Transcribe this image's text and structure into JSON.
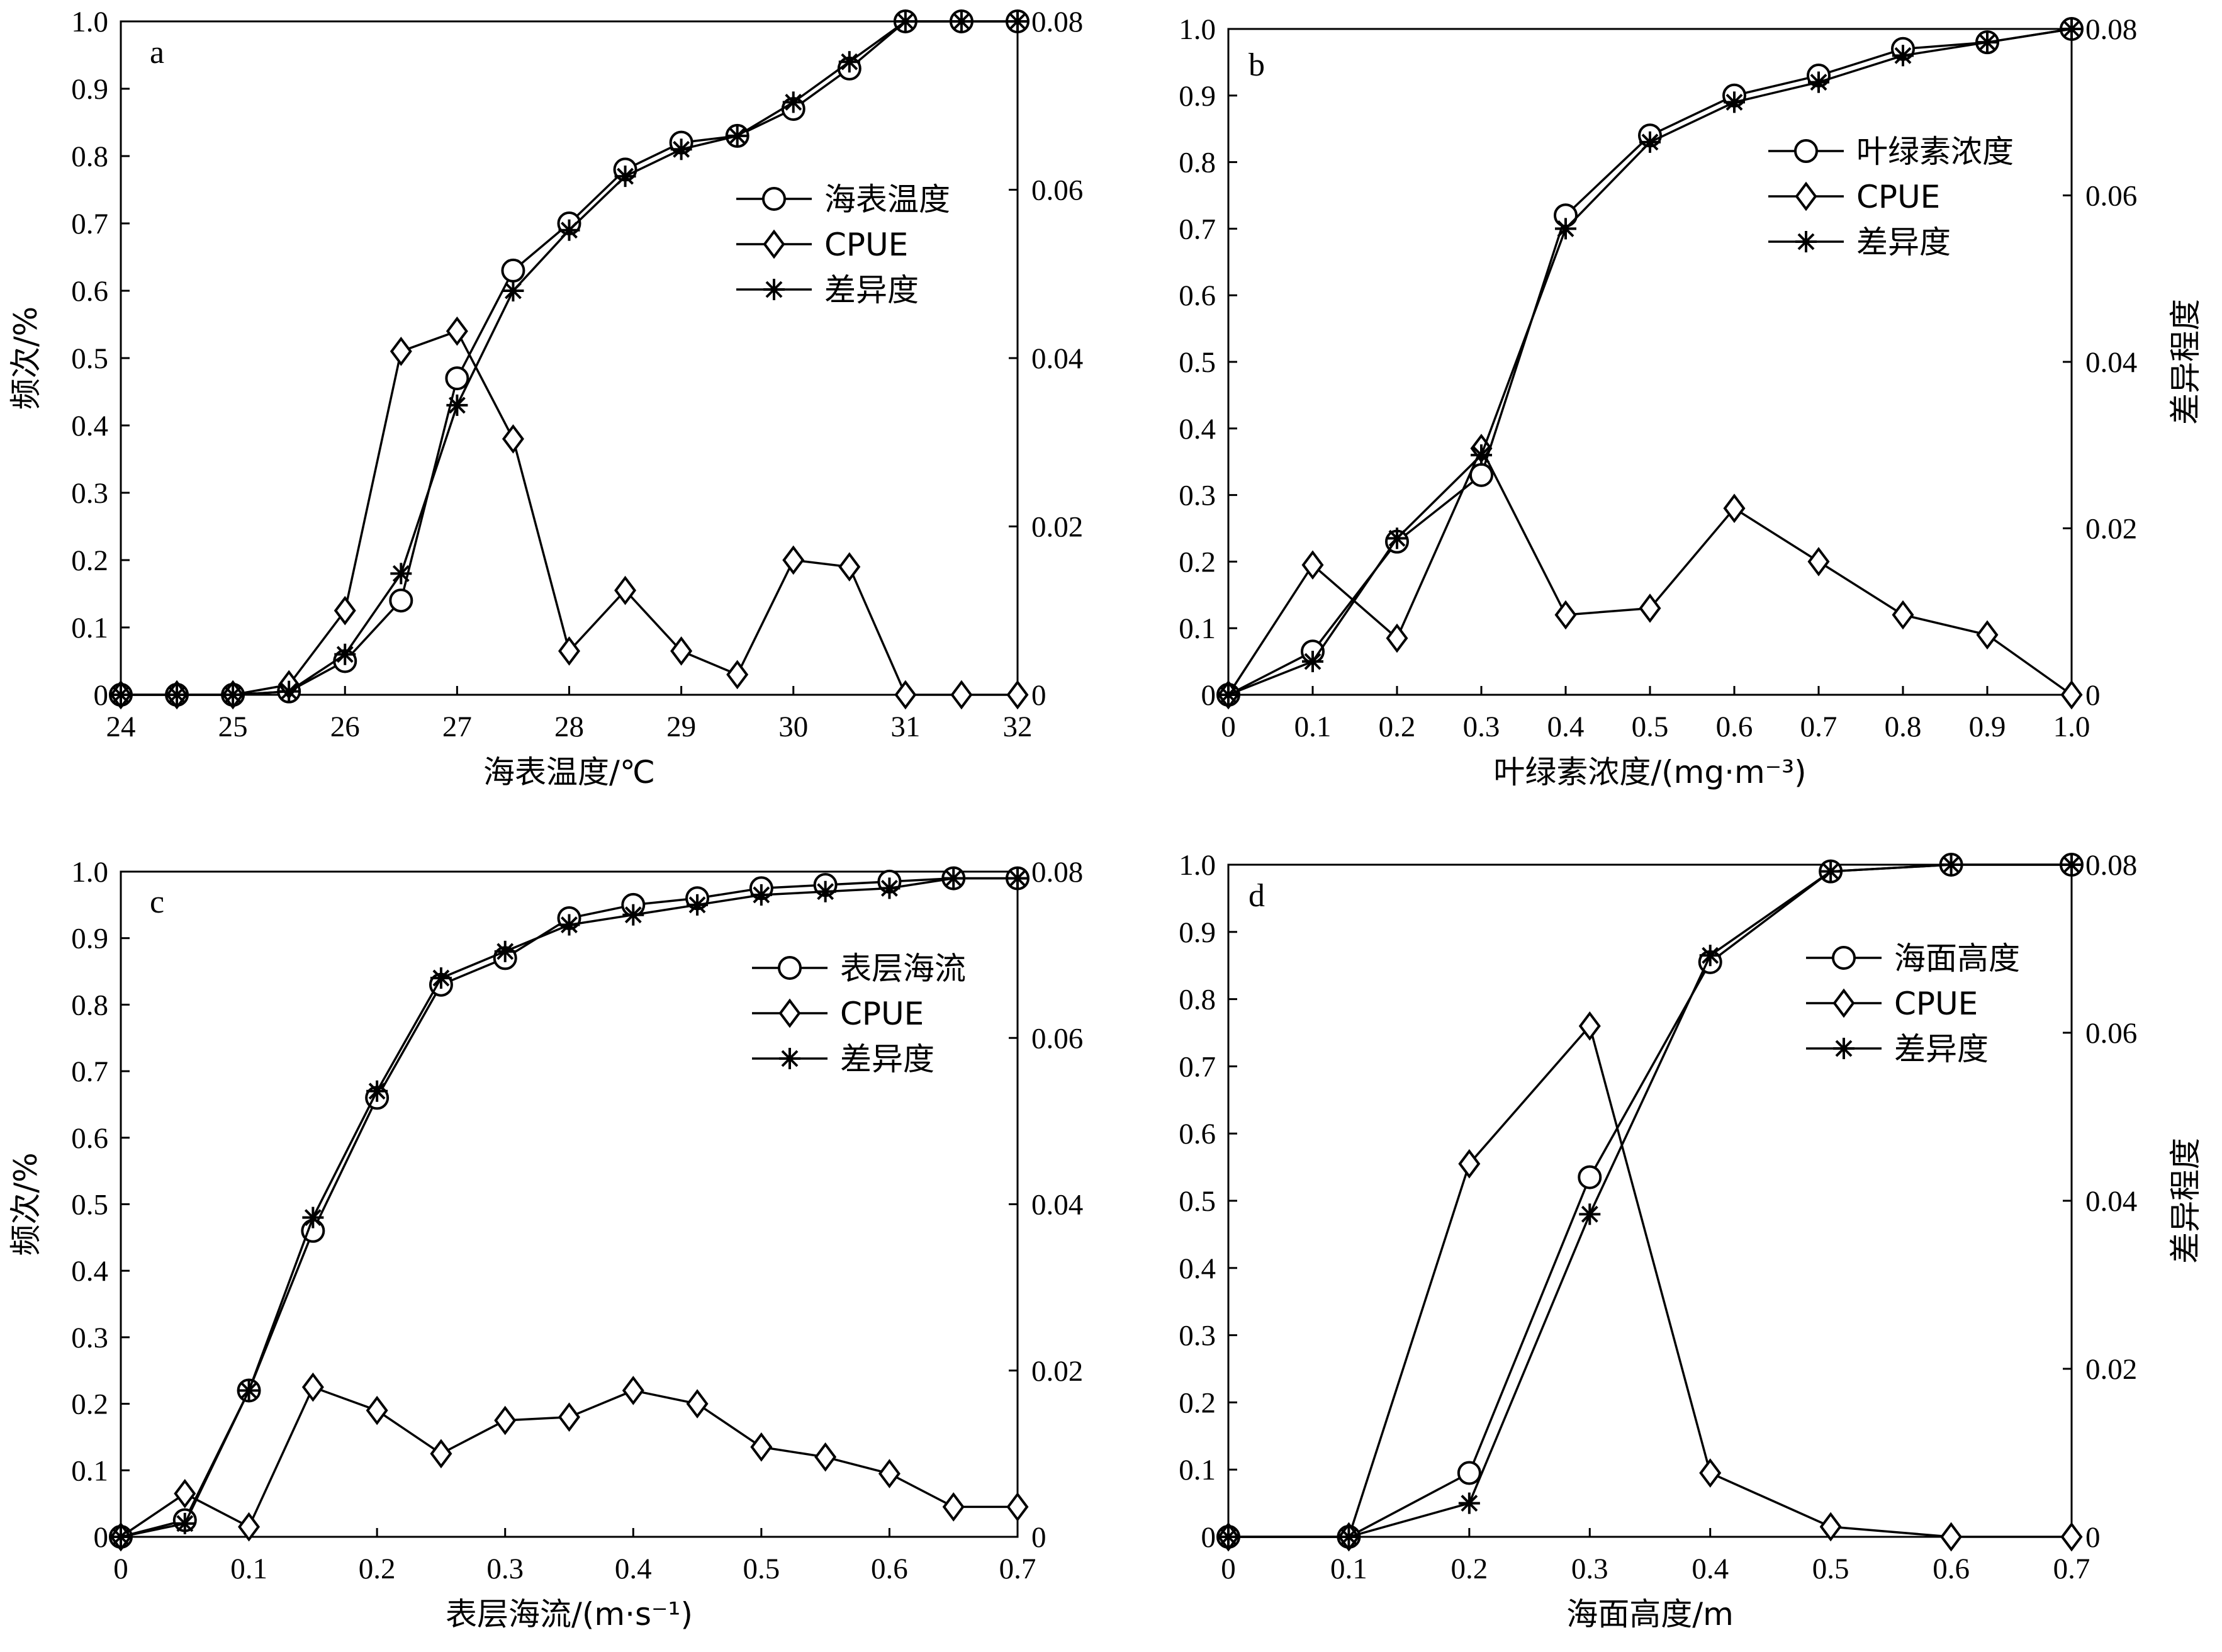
{
  "chart_data": [
    {
      "type": "line",
      "panel_letter": "a",
      "xlabel": "海表温度/℃",
      "ylabel_left": "频次/%",
      "ylabel_right": "",
      "xlim": [
        24,
        32
      ],
      "xticks": [
        24,
        25,
        26,
        27,
        28,
        29,
        30,
        31,
        32
      ],
      "ylim_left": [
        0,
        1.0
      ],
      "yticks_left": [
        "0",
        "0.1",
        "0.2",
        "0.3",
        "0.4",
        "0.5",
        "0.6",
        "0.7",
        "0.8",
        "0.9",
        "1.0"
      ],
      "ylim_right": [
        0,
        0.08
      ],
      "yticks_right": [
        "0",
        "0.02",
        "0.04",
        "0.06",
        "0.08"
      ],
      "legend_position": "top-right",
      "grid": false,
      "series": [
        {
          "name": "海表温度",
          "marker": "circle",
          "x": [
            24,
            24.5,
            25,
            25.5,
            26,
            26.5,
            27,
            27.5,
            28,
            28.5,
            29,
            29.5,
            30,
            30.5,
            31,
            31.5,
            32
          ],
          "y": [
            0,
            0,
            0,
            0.005,
            0.05,
            0.14,
            0.47,
            0.63,
            0.7,
            0.78,
            0.82,
            0.83,
            0.87,
            0.93,
            1.0,
            1.0,
            1.0
          ]
        },
        {
          "name": "CPUE",
          "marker": "diamond",
          "x": [
            24,
            24.5,
            25,
            25.5,
            26,
            26.5,
            27,
            27.5,
            28,
            28.5,
            29,
            29.5,
            30,
            30.5,
            31,
            31.5,
            32
          ],
          "y": [
            0,
            0,
            0,
            0.015,
            0.125,
            0.51,
            0.54,
            0.38,
            0.065,
            0.155,
            0.065,
            0.03,
            0.2,
            0.19,
            0,
            0,
            0
          ]
        },
        {
          "name": "差异度",
          "marker": "star",
          "x": [
            24,
            24.5,
            25,
            25.5,
            26,
            26.5,
            27,
            27.5,
            28,
            28.5,
            29,
            29.5,
            30,
            30.5,
            31,
            31.5,
            32
          ],
          "y": [
            0,
            0,
            0,
            0.005,
            0.06,
            0.18,
            0.43,
            0.6,
            0.69,
            0.77,
            0.81,
            0.83,
            0.88,
            0.94,
            1.0,
            1.0,
            1.0
          ]
        }
      ]
    },
    {
      "type": "line",
      "panel_letter": "b",
      "xlabel": "叶绿素浓度/(mg·m⁻³)",
      "ylabel_left": "",
      "ylabel_right": "差异程度",
      "xlim": [
        0,
        1.0
      ],
      "xticks": [
        "0",
        "0.1",
        "0.2",
        "0.3",
        "0.4",
        "0.5",
        "0.6",
        "0.7",
        "0.8",
        "0.9",
        "1.0"
      ],
      "ylim_left": [
        0,
        1.0
      ],
      "yticks_left": [
        "0",
        "0.1",
        "0.2",
        "0.3",
        "0.4",
        "0.5",
        "0.6",
        "0.7",
        "0.8",
        "0.9",
        "1.0"
      ],
      "ylim_right": [
        0,
        0.08
      ],
      "yticks_right": [
        "0",
        "0.02",
        "0.04",
        "0.06",
        "0.08"
      ],
      "legend_position": "top-right",
      "grid": false,
      "series": [
        {
          "name": "叶绿素浓度",
          "marker": "circle",
          "x": [
            0,
            0.1,
            0.2,
            0.3,
            0.4,
            0.5,
            0.6,
            0.7,
            0.8,
            0.9,
            1.0
          ],
          "y": [
            0,
            0.065,
            0.23,
            0.33,
            0.72,
            0.84,
            0.9,
            0.93,
            0.97,
            0.98,
            1.0
          ]
        },
        {
          "name": "CPUE",
          "marker": "diamond",
          "x": [
            0,
            0.1,
            0.2,
            0.3,
            0.4,
            0.5,
            0.6,
            0.7,
            0.8,
            0.9,
            1.0
          ],
          "y": [
            0,
            0.195,
            0.085,
            0.37,
            0.12,
            0.13,
            0.28,
            0.2,
            0.12,
            0.09,
            0
          ]
        },
        {
          "name": "差异度",
          "marker": "star",
          "x": [
            0,
            0.1,
            0.2,
            0.3,
            0.4,
            0.5,
            0.6,
            0.7,
            0.8,
            0.9,
            1.0
          ],
          "y": [
            0,
            0.05,
            0.235,
            0.36,
            0.7,
            0.83,
            0.89,
            0.92,
            0.96,
            0.98,
            1.0
          ]
        }
      ]
    },
    {
      "type": "line",
      "panel_letter": "c",
      "xlabel": "表层海流/(m·s⁻¹)",
      "ylabel_left": "频次/%",
      "ylabel_right": "",
      "xlim": [
        0,
        0.7
      ],
      "xticks": [
        "0",
        "0.1",
        "0.2",
        "0.3",
        "0.4",
        "0.5",
        "0.6",
        "0.7"
      ],
      "ylim_left": [
        0,
        1.0
      ],
      "yticks_left": [
        "0",
        "0.1",
        "0.2",
        "0.3",
        "0.4",
        "0.5",
        "0.6",
        "0.7",
        "0.8",
        "0.9",
        "1.0"
      ],
      "ylim_right": [
        0,
        0.08
      ],
      "yticks_right": [
        "0",
        "0.02",
        "0.04",
        "0.06",
        "0.08"
      ],
      "legend_position": "top-right",
      "grid": false,
      "series": [
        {
          "name": "表层海流",
          "marker": "circle",
          "x": [
            0,
            0.05,
            0.1,
            0.15,
            0.2,
            0.25,
            0.3,
            0.35,
            0.4,
            0.45,
            0.5,
            0.55,
            0.6,
            0.65,
            0.7
          ],
          "y": [
            0,
            0.025,
            0.22,
            0.46,
            0.66,
            0.83,
            0.87,
            0.93,
            0.95,
            0.96,
            0.975,
            0.98,
            0.985,
            0.99,
            0.99
          ]
        },
        {
          "name": "CPUE",
          "marker": "diamond",
          "x": [
            0,
            0.05,
            0.1,
            0.15,
            0.2,
            0.25,
            0.3,
            0.35,
            0.4,
            0.45,
            0.5,
            0.55,
            0.6,
            0.65,
            0.7
          ],
          "y": [
            0,
            0.065,
            0.015,
            0.225,
            0.19,
            0.125,
            0.175,
            0.18,
            0.22,
            0.2,
            0.135,
            0.12,
            0.095,
            0.045,
            0.045
          ]
        },
        {
          "name": "差异度",
          "marker": "star",
          "x": [
            0,
            0.05,
            0.1,
            0.15,
            0.2,
            0.25,
            0.3,
            0.35,
            0.4,
            0.45,
            0.5,
            0.55,
            0.6,
            0.65,
            0.7
          ],
          "y": [
            0,
            0.02,
            0.22,
            0.48,
            0.67,
            0.84,
            0.88,
            0.92,
            0.935,
            0.95,
            0.965,
            0.97,
            0.975,
            0.99,
            0.99
          ]
        }
      ]
    },
    {
      "type": "line",
      "panel_letter": "d",
      "xlabel": "海面高度/m",
      "ylabel_left": "",
      "ylabel_right": "差异程度",
      "xlim": [
        0,
        0.7
      ],
      "xticks": [
        "0",
        "0.1",
        "0.2",
        "0.3",
        "0.4",
        "0.5",
        "0.6",
        "0.7"
      ],
      "ylim_left": [
        0,
        1.0
      ],
      "yticks_left": [
        "0",
        "0.1",
        "0.2",
        "0.3",
        "0.4",
        "0.5",
        "0.6",
        "0.7",
        "0.8",
        "0.9",
        "1.0"
      ],
      "ylim_right": [
        0,
        0.08
      ],
      "yticks_right": [
        "0",
        "0.02",
        "0.04",
        "0.06",
        "0.08"
      ],
      "legend_position": "top-right",
      "grid": false,
      "series": [
        {
          "name": "海面高度",
          "marker": "circle",
          "x": [
            0,
            0.1,
            0.2,
            0.3,
            0.4,
            0.5,
            0.6,
            0.7
          ],
          "y": [
            0,
            0,
            0.095,
            0.535,
            0.855,
            0.99,
            1.0,
            1.0
          ]
        },
        {
          "name": "CPUE",
          "marker": "diamond",
          "x": [
            0,
            0.1,
            0.2,
            0.3,
            0.4,
            0.5,
            0.6,
            0.7
          ],
          "y": [
            0,
            0,
            0.555,
            0.76,
            0.095,
            0.015,
            0,
            0
          ]
        },
        {
          "name": "差异度",
          "marker": "star",
          "x": [
            0,
            0.1,
            0.2,
            0.3,
            0.4,
            0.5,
            0.6,
            0.7
          ],
          "y": [
            0,
            0,
            0.05,
            0.48,
            0.865,
            0.99,
            1.0,
            1.0
          ]
        }
      ]
    }
  ]
}
